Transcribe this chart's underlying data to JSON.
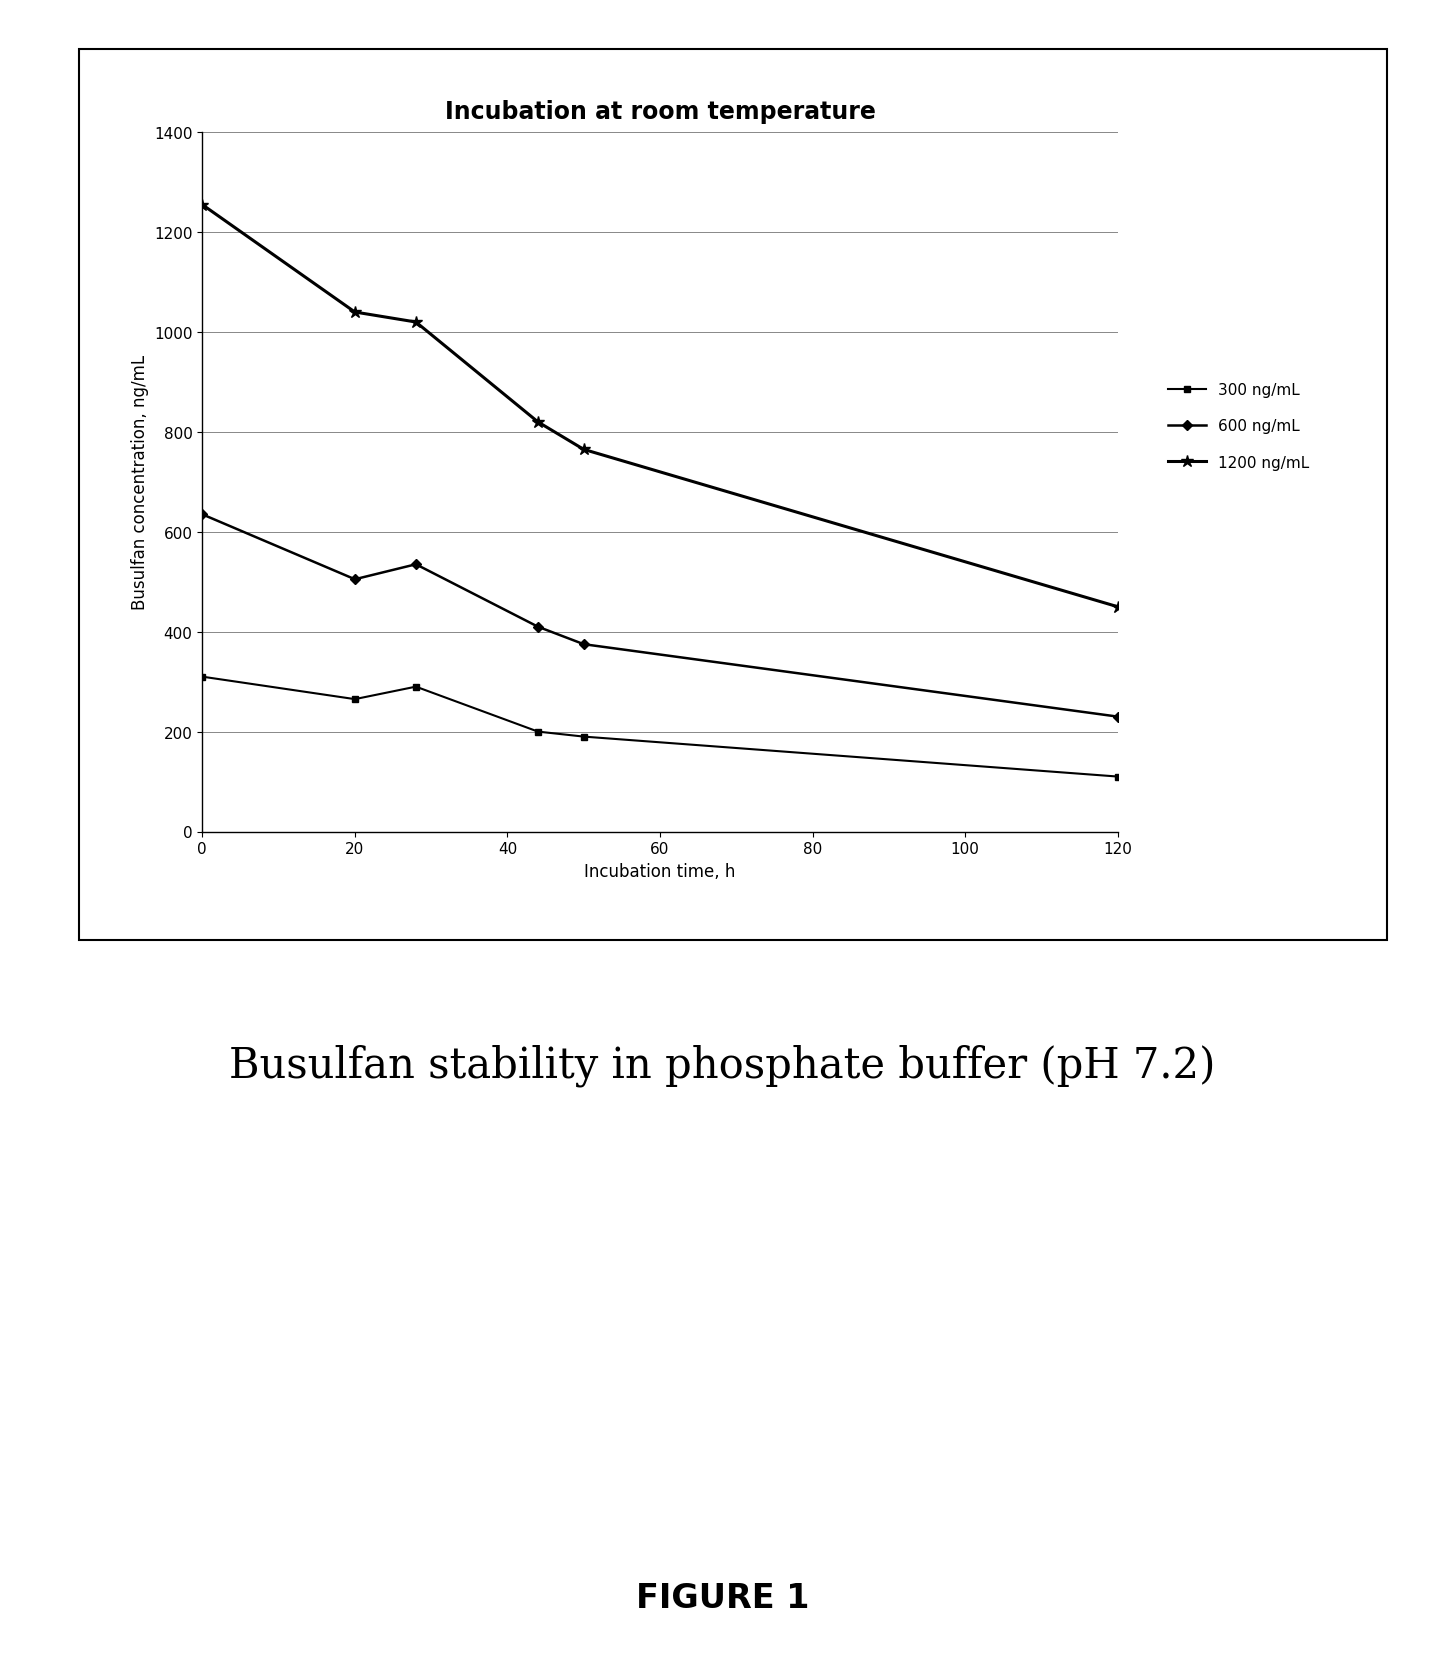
{
  "title": "Incubation at room temperature",
  "subtitle": "Busulfan stability in phosphate buffer (pH 7.2)",
  "figure_label": "FIGURE 1",
  "xlabel": "Incubation time, h",
  "ylabel": "Busulfan concentration, ng/mL",
  "xlim": [
    0,
    120
  ],
  "ylim": [
    0,
    1400
  ],
  "xticks": [
    0,
    20,
    40,
    60,
    80,
    100,
    120
  ],
  "yticks": [
    0,
    200,
    400,
    600,
    800,
    1000,
    1200,
    1400
  ],
  "series": [
    {
      "label": "300 ng/mL",
      "x": [
        0,
        20,
        28,
        44,
        50,
        120
      ],
      "y": [
        310,
        265,
        290,
        200,
        190,
        110
      ],
      "color": "#000000",
      "linewidth": 1.5
    },
    {
      "label": "600 ng/mL",
      "x": [
        0,
        20,
        28,
        44,
        50,
        120
      ],
      "y": [
        635,
        505,
        535,
        410,
        375,
        230
      ],
      "color": "#000000",
      "linewidth": 1.8
    },
    {
      "label": "1200 ng/mL",
      "x": [
        0,
        20,
        28,
        44,
        50,
        120
      ],
      "y": [
        1255,
        1040,
        1020,
        820,
        765,
        450
      ],
      "color": "#000000",
      "linewidth": 2.2
    }
  ],
  "background_color": "#ffffff",
  "plot_background": "#ffffff",
  "grid_color": "#888888",
  "title_fontsize": 17,
  "label_fontsize": 12,
  "tick_fontsize": 11,
  "legend_fontsize": 11,
  "subtitle_fontsize": 30,
  "figure_label_fontsize": 24,
  "legend_markers": [
    "s",
    "D",
    "*"
  ],
  "legend_markersizes": [
    5,
    5,
    9
  ],
  "series_markers": [
    "s",
    "D",
    "*"
  ],
  "series_markersizes": [
    5,
    5,
    9
  ]
}
